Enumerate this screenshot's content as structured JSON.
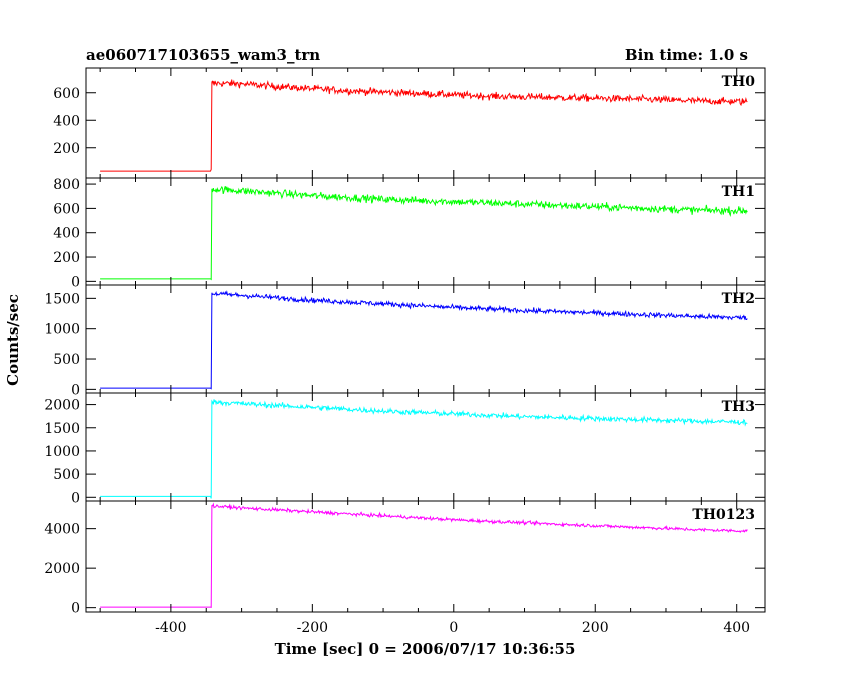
{
  "header": {
    "title": "ae060717103655_wam3_trn",
    "bin_time": "Bin time: 1.0 s"
  },
  "axes": {
    "ylabel": "Counts/sec",
    "xlabel": "Time [sec] 0 = 2006/07/17 10:36:55",
    "xlim": [
      -520,
      440
    ],
    "x_ticks": [
      -400,
      -200,
      0,
      200,
      400
    ]
  },
  "chart_data": [
    {
      "type": "line",
      "label": "TH0",
      "color": "#ff0000",
      "ylim": [
        -20,
        780
      ],
      "y_ticks": [
        200,
        400,
        600
      ],
      "onset_time": -343,
      "x": [
        -500,
        -343,
        -342,
        -300,
        -250,
        -200,
        -150,
        -100,
        -50,
        0,
        50,
        100,
        150,
        200,
        250,
        300,
        350,
        415
      ],
      "y": [
        30,
        30,
        670,
        665,
        645,
        630,
        615,
        605,
        595,
        585,
        575,
        570,
        565,
        560,
        555,
        548,
        540,
        535
      ],
      "noise": 25
    },
    {
      "type": "line",
      "label": "TH1",
      "color": "#00ff00",
      "ylim": [
        -30,
        850
      ],
      "y_ticks": [
        0,
        200,
        400,
        600,
        800
      ],
      "onset_time": -343,
      "x": [
        -500,
        -343,
        -342,
        -300,
        -250,
        -200,
        -150,
        -100,
        -50,
        0,
        50,
        100,
        150,
        200,
        250,
        300,
        350,
        415
      ],
      "y": [
        20,
        20,
        760,
        745,
        725,
        705,
        690,
        675,
        665,
        655,
        645,
        635,
        625,
        615,
        605,
        595,
        585,
        580
      ],
      "noise": 30
    },
    {
      "type": "line",
      "label": "TH2",
      "color": "#0000ff",
      "ylim": [
        -60,
        1720
      ],
      "y_ticks": [
        0,
        500,
        1000,
        1500
      ],
      "onset_time": -343,
      "x": [
        -500,
        -343,
        -342,
        -300,
        -250,
        -200,
        -150,
        -100,
        -50,
        0,
        50,
        100,
        150,
        200,
        250,
        300,
        350,
        415
      ],
      "y": [
        20,
        20,
        1580,
        1550,
        1510,
        1470,
        1440,
        1410,
        1380,
        1350,
        1325,
        1300,
        1280,
        1260,
        1240,
        1220,
        1200,
        1180
      ],
      "noise": 40
    },
    {
      "type": "line",
      "label": "TH3",
      "color": "#00ffff",
      "ylim": [
        -80,
        2250
      ],
      "y_ticks": [
        0,
        500,
        1000,
        1500,
        2000
      ],
      "onset_time": -343,
      "x": [
        -500,
        -343,
        -342,
        -300,
        -250,
        -200,
        -150,
        -100,
        -50,
        0,
        50,
        100,
        150,
        200,
        250,
        300,
        350,
        415
      ],
      "y": [
        20,
        20,
        2060,
        2020,
        1980,
        1940,
        1900,
        1860,
        1830,
        1800,
        1770,
        1740,
        1720,
        1700,
        1680,
        1660,
        1640,
        1620
      ],
      "noise": 55
    },
    {
      "type": "line",
      "label": "TH0123",
      "color": "#ff00ff",
      "ylim": [
        -220,
        5400
      ],
      "y_ticks": [
        0,
        2000,
        4000
      ],
      "onset_time": -343,
      "x": [
        -500,
        -343,
        -342,
        -300,
        -250,
        -200,
        -150,
        -100,
        -50,
        0,
        50,
        100,
        150,
        200,
        250,
        300,
        350,
        415
      ],
      "y": [
        30,
        30,
        5150,
        5050,
        4950,
        4850,
        4750,
        4650,
        4550,
        4450,
        4370,
        4300,
        4220,
        4150,
        4080,
        4010,
        3940,
        3880
      ],
      "noise": 80
    }
  ]
}
